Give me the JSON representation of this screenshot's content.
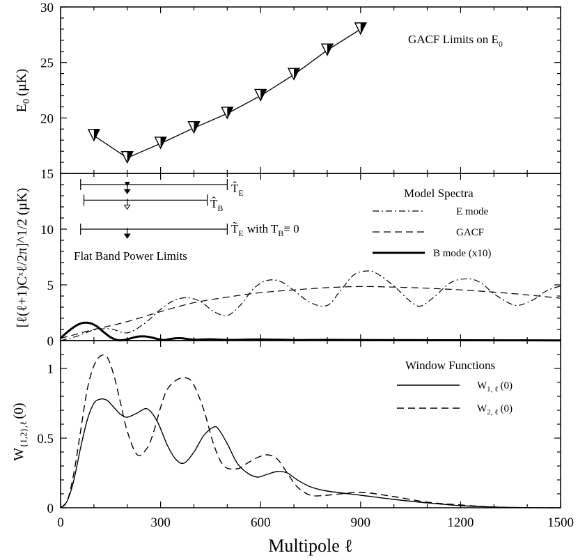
{
  "chart_data": [
    {
      "panel": "top",
      "type": "line",
      "title": "GACF Limits on E",
      "title_sub": "0",
      "ylabel": "E",
      "ylabel_sub": "0",
      "ylabel_unit": "(µK)",
      "xlim": [
        0,
        1500
      ],
      "ylim": [
        15,
        30
      ],
      "yticks": [
        15,
        20,
        25,
        30
      ],
      "series": [
        {
          "name": "GACF limits",
          "x": [
            100,
            200,
            300,
            400,
            500,
            600,
            700,
            800,
            900
          ],
          "y": [
            18.4,
            16.4,
            17.7,
            19.1,
            20.4,
            22.0,
            23.9,
            26.1,
            28.0
          ]
        }
      ]
    },
    {
      "panel": "middle",
      "type": "line",
      "ylabel": "[ℓ(ℓ+1)Cˣℓ/2π]^1/2 (µK)",
      "xlim": [
        0,
        1500
      ],
      "ylim": [
        0,
        15
      ],
      "yticks": [
        0,
        5,
        10,
        15
      ],
      "legend_title": "Model Spectra",
      "legend": [
        "E mode",
        "GACF",
        "B mode (x10)"
      ],
      "series": [
        {
          "name": "E mode",
          "x": [
            0,
            20,
            50,
            100,
            150,
            200,
            250,
            300,
            340,
            380,
            420,
            460,
            500,
            540,
            580,
            620,
            660,
            700,
            750,
            800,
            840,
            880,
            920,
            950,
            1000,
            1050,
            1080,
            1120,
            1170,
            1220,
            1260,
            1300,
            1350,
            1380,
            1420,
            1460,
            1500
          ],
          "y": [
            0,
            0.15,
            0.4,
            0.95,
            1.05,
            0.7,
            1.5,
            2.8,
            3.6,
            3.85,
            3.5,
            2.6,
            2.25,
            3.2,
            4.7,
            5.4,
            5.3,
            4.5,
            3.4,
            3.15,
            4.5,
            5.9,
            6.25,
            6.0,
            4.9,
            3.5,
            3.1,
            3.9,
            5.2,
            5.55,
            5.2,
            4.2,
            3.3,
            3.2,
            3.7,
            4.5,
            4.9
          ]
        },
        {
          "name": "GACF",
          "x": [
            0,
            50,
            100,
            200,
            300,
            400,
            500,
            600,
            700,
            800,
            900,
            1000,
            1100,
            1200,
            1300,
            1400,
            1500
          ],
          "y": [
            0.2,
            0.6,
            1.0,
            1.7,
            2.6,
            3.4,
            3.9,
            4.3,
            4.55,
            4.75,
            4.85,
            4.8,
            4.7,
            4.55,
            4.35,
            4.1,
            3.8
          ]
        },
        {
          "name": "B mode (x10)",
          "x": [
            0,
            10,
            30,
            50,
            70,
            90,
            110,
            130,
            150,
            170,
            190,
            210,
            230,
            250,
            270,
            290,
            310,
            330,
            360,
            400,
            450,
            500,
            600,
            700,
            800,
            1000,
            1200,
            1500
          ],
          "y": [
            0.2,
            0.5,
            1.0,
            1.4,
            1.6,
            1.55,
            1.25,
            0.75,
            0.3,
            0.05,
            0.05,
            0.2,
            0.35,
            0.38,
            0.3,
            0.15,
            0.05,
            0.15,
            0.22,
            0.08,
            0.12,
            0.06,
            0.1,
            0.05,
            0.06,
            0.04,
            0.03,
            0.02
          ]
        }
      ],
      "band_limits": {
        "title": "Flat Band Power Limits",
        "items": [
          {
            "label": "T̂",
            "sub": "E",
            "xmin": 60,
            "xmax": 500,
            "value": 14.0,
            "marker": "filled-upper-limit"
          },
          {
            "label": "T̂",
            "sub": "B",
            "xmin": 70,
            "xmax": 440,
            "value": 12.6,
            "marker": "open-upper-limit"
          },
          {
            "label": "T̃",
            "sub": "E",
            "suffix_pre": "with T",
            "suffix_sub": "B",
            "suffix_post": "≡ 0",
            "xmin": 60,
            "xmax": 500,
            "value": 10.0,
            "marker": "upper-limit"
          }
        ]
      }
    },
    {
      "panel": "bottom",
      "type": "line",
      "ylabel": "W",
      "ylabel_sub": "{1,2},ℓ",
      "ylabel_suffix": "(0)",
      "xlabel": "Multipole ℓ",
      "xlim": [
        0,
        1500
      ],
      "ylim": [
        0,
        1.2
      ],
      "yticks": [
        0,
        0.5,
        1
      ],
      "xticks": [
        0,
        300,
        600,
        900,
        1200,
        1500
      ],
      "legend_title": "Window Functions",
      "legend": [
        {
          "name": "W",
          "sub": "1, ℓ",
          "suffix": "(0)"
        },
        {
          "name": "W",
          "sub": "2, ℓ",
          "suffix": "(0)"
        }
      ],
      "series": [
        {
          "name": "W1",
          "x": [
            0,
            20,
            40,
            60,
            80,
            100,
            120,
            140,
            160,
            180,
            200,
            230,
            260,
            290,
            320,
            345,
            370,
            400,
            430,
            460,
            475,
            500,
            530,
            560,
            590,
            620,
            650,
            680,
            710,
            750,
            800,
            900,
            1000,
            1100,
            1200,
            1300,
            1400,
            1500
          ],
          "y": [
            0,
            0.05,
            0.2,
            0.43,
            0.63,
            0.75,
            0.78,
            0.77,
            0.72,
            0.67,
            0.65,
            0.68,
            0.71,
            0.62,
            0.45,
            0.35,
            0.32,
            0.4,
            0.52,
            0.58,
            0.56,
            0.46,
            0.32,
            0.25,
            0.22,
            0.24,
            0.26,
            0.25,
            0.2,
            0.15,
            0.12,
            0.09,
            0.06,
            0.035,
            0.015,
            0.005,
            0.001,
            0
          ]
        },
        {
          "name": "W2",
          "x": [
            0,
            20,
            40,
            60,
            80,
            100,
            120,
            140,
            160,
            180,
            200,
            230,
            260,
            280,
            300,
            320,
            350,
            380,
            400,
            430,
            460,
            490,
            530,
            560,
            590,
            620,
            650,
            680,
            710,
            750,
            800,
            900,
            1000,
            1100,
            1200,
            1300,
            1400,
            1500
          ],
          "y": [
            0,
            0.05,
            0.25,
            0.55,
            0.85,
            1.02,
            1.09,
            1.08,
            0.95,
            0.75,
            0.55,
            0.38,
            0.43,
            0.55,
            0.72,
            0.85,
            0.92,
            0.93,
            0.88,
            0.7,
            0.45,
            0.3,
            0.28,
            0.32,
            0.36,
            0.38,
            0.35,
            0.25,
            0.15,
            0.09,
            0.09,
            0.11,
            0.08,
            0.04,
            0.02,
            0.005,
            0.001,
            0
          ]
        }
      ]
    }
  ]
}
